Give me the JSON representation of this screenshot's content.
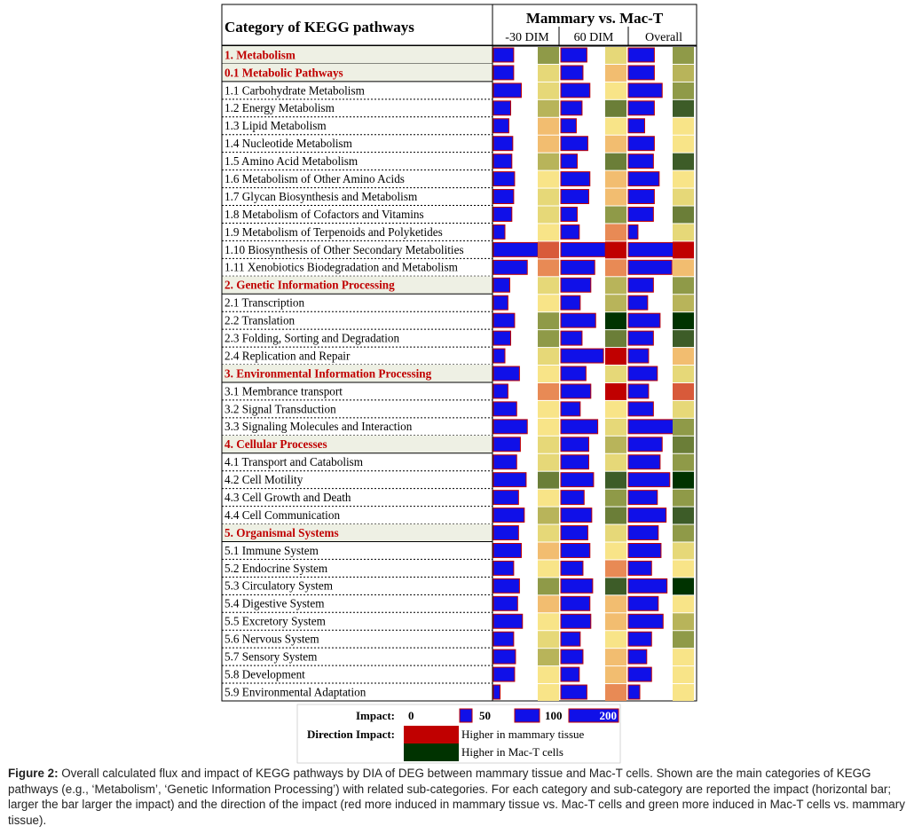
{
  "table": {
    "header_left": "Category of KEGG pathways",
    "header_group": "Mammary vs. Mac-T",
    "columns": [
      "-30 DIM",
      "60 DIM",
      "Overall"
    ]
  },
  "colors": {
    "impact_bar": "#1010e8",
    "impact_bar_border": "#c00000",
    "category_text": "#c00000",
    "category_row_bg": "#eef0e4",
    "higher_mammary": "#c00000",
    "higher_mact": "#003300",
    "direction_scale": [
      "#c00000",
      "#d85a3a",
      "#e88a55",
      "#f2bd70",
      "#f8e488",
      "#e6d878",
      "#b8b45a",
      "#8f9a48",
      "#6b7e38",
      "#3d5c28",
      "#003300"
    ]
  },
  "legend": {
    "impact_label": "Impact:",
    "impact_ticks": [
      {
        "label": "0",
        "value": 0
      },
      {
        "label": "50",
        "value": 50
      },
      {
        "label": "100",
        "value": 100
      },
      {
        "label": "200",
        "value": 200
      }
    ],
    "direction_label": "Direction Impact:",
    "direction_items": [
      "Higher in mammary tissue",
      "Higher in Mac-T cells"
    ]
  },
  "chart_data": {
    "type": "table",
    "title": "",
    "impact_range": [
      0,
      200
    ],
    "direction_scale_note": "direction level 0 = strongly higher in mammary tissue (red) ... 10 = strongly higher in Mac-T cells (green)",
    "series_names": [
      "-30 DIM",
      "60 DIM",
      "Overall"
    ],
    "rows": [
      {
        "label": "1. Metabolism",
        "category": true,
        "impact": [
          88,
          113,
          113
        ],
        "direction": [
          7,
          5,
          7
        ]
      },
      {
        "label": "0.1 Metabolic Pathways",
        "category": true,
        "impact": [
          88,
          96,
          113
        ],
        "direction": [
          5,
          3,
          6
        ]
      },
      {
        "label": "1.1 Carbohydrate Metabolism",
        "category": false,
        "impact": [
          121,
          126,
          147
        ],
        "direction": [
          5,
          4,
          7
        ]
      },
      {
        "label": "1.2 Energy Metabolism",
        "category": false,
        "impact": [
          75,
          92,
          113
        ],
        "direction": [
          6,
          8,
          9
        ]
      },
      {
        "label": "1.3 Lipid Metabolism",
        "category": false,
        "impact": [
          67,
          67,
          71
        ],
        "direction": [
          3,
          4,
          4
        ]
      },
      {
        "label": "1.4 Nucleotide Metabolism",
        "category": false,
        "impact": [
          84,
          117,
          113
        ],
        "direction": [
          3,
          3,
          4
        ]
      },
      {
        "label": "1.5 Amino Acid  Metabolism",
        "category": false,
        "impact": [
          80,
          71,
          109
        ],
        "direction": [
          6,
          8,
          9
        ]
      },
      {
        "label": "1.6 Metabolism of Other Amino Acids",
        "category": false,
        "impact": [
          92,
          126,
          134
        ],
        "direction": [
          4,
          3,
          4
        ]
      },
      {
        "label": "1.7 Glycan Biosynthesis and Metabolism",
        "category": false,
        "impact": [
          88,
          121,
          113
        ],
        "direction": [
          5,
          3,
          5
        ]
      },
      {
        "label": "1.8 Metabolism of Cofactors and Vitamins",
        "category": false,
        "impact": [
          80,
          71,
          109
        ],
        "direction": [
          5,
          7,
          8
        ]
      },
      {
        "label": "1.9 Metabolism of Terpenoids and Polyketides",
        "category": false,
        "impact": [
          50,
          80,
          42
        ],
        "direction": [
          4,
          2,
          5
        ]
      },
      {
        "label": "1.10 Biosynthesis of Other Secondary Metabolities",
        "category": false,
        "impact": [
          193,
          193,
          197
        ],
        "direction": [
          1,
          0,
          0
        ]
      },
      {
        "label": "1.11 Xenobiotics Biodegradation and Metabolism",
        "category": false,
        "impact": [
          147,
          147,
          189
        ],
        "direction": [
          2,
          2,
          3
        ]
      },
      {
        "label": "2. Genetic Information Processing",
        "category": true,
        "impact": [
          71,
          130,
          109
        ],
        "direction": [
          5,
          6,
          7
        ]
      },
      {
        "label": "2.1 Transcription",
        "category": false,
        "impact": [
          63,
          84,
          84
        ],
        "direction": [
          4,
          6,
          6
        ]
      },
      {
        "label": "2.2 Translation",
        "category": false,
        "impact": [
          92,
          151,
          138
        ],
        "direction": [
          7,
          10,
          10
        ]
      },
      {
        "label": "2.3 Folding, Sorting and Degradation",
        "category": false,
        "impact": [
          75,
          92,
          109
        ],
        "direction": [
          7,
          8,
          9
        ]
      },
      {
        "label": "2.4 Replication and Repair",
        "category": false,
        "impact": [
          50,
          185,
          88
        ],
        "direction": [
          5,
          0,
          3
        ]
      },
      {
        "label": "3. Environmental Information Processing",
        "category": true,
        "impact": [
          113,
          109,
          126
        ],
        "direction": [
          4,
          5,
          5
        ]
      },
      {
        "label": "3.1 Membrance transport",
        "category": false,
        "impact": [
          63,
          130,
          88
        ],
        "direction": [
          2,
          0,
          1
        ]
      },
      {
        "label": "3.2 Signal Transduction",
        "category": false,
        "impact": [
          101,
          84,
          109
        ],
        "direction": [
          4,
          4,
          5
        ]
      },
      {
        "label": "3.3 Signaling Molecules and Interaction",
        "category": false,
        "impact": [
          147,
          160,
          197
        ],
        "direction": [
          4,
          5,
          7
        ]
      },
      {
        "label": "4. Cellular Processes",
        "category": true,
        "impact": [
          117,
          121,
          147
        ],
        "direction": [
          5,
          6,
          8
        ]
      },
      {
        "label": "4.1 Transport and Catabolism",
        "category": false,
        "impact": [
          101,
          121,
          138
        ],
        "direction": [
          5,
          5,
          7
        ]
      },
      {
        "label": "4.2 Cell Motility",
        "category": false,
        "impact": [
          142,
          142,
          180
        ],
        "direction": [
          8,
          9,
          10
        ]
      },
      {
        "label": "4.3 Cell Growth and Death",
        "category": false,
        "impact": [
          109,
          101,
          126
        ],
        "direction": [
          4,
          7,
          7
        ]
      },
      {
        "label": "4.4 Cell Communication",
        "category": false,
        "impact": [
          134,
          134,
          164
        ],
        "direction": [
          6,
          8,
          9
        ]
      },
      {
        "label": "5. Organismal Systems",
        "category": true,
        "impact": [
          109,
          117,
          130
        ],
        "direction": [
          5,
          5,
          7
        ]
      },
      {
        "label": "5.1 Immune System",
        "category": false,
        "impact": [
          121,
          126,
          142
        ],
        "direction": [
          3,
          4,
          5
        ]
      },
      {
        "label": "5.2 Endocrine System",
        "category": false,
        "impact": [
          88,
          96,
          101
        ],
        "direction": [
          4,
          2,
          4
        ]
      },
      {
        "label": "5.3 Circulatory System",
        "category": false,
        "impact": [
          113,
          138,
          168
        ],
        "direction": [
          7,
          9,
          10
        ]
      },
      {
        "label": "5.4 Digestive System",
        "category": false,
        "impact": [
          105,
          126,
          130
        ],
        "direction": [
          3,
          3,
          4
        ]
      },
      {
        "label": "5.5 Excretory System",
        "category": false,
        "impact": [
          126,
          130,
          151
        ],
        "direction": [
          4,
          3,
          6
        ]
      },
      {
        "label": "5.6 Nervous System",
        "category": false,
        "impact": [
          88,
          84,
          101
        ],
        "direction": [
          5,
          4,
          7
        ]
      },
      {
        "label": "5.7 Sensory System",
        "category": false,
        "impact": [
          96,
          96,
          80
        ],
        "direction": [
          6,
          3,
          4
        ]
      },
      {
        "label": "5.8 Development",
        "category": false,
        "impact": [
          92,
          80,
          101
        ],
        "direction": [
          4,
          3,
          4
        ]
      },
      {
        "label": "5.9 Environmental Adaptation",
        "category": false,
        "impact": [
          29,
          113,
          50
        ],
        "direction": [
          4,
          2,
          4
        ]
      }
    ]
  },
  "caption": {
    "label": "Figure 2:",
    "text": " Overall calculated flux and impact of KEGG pathways by DIA of DEG between mammary tissue and Mac-T cells. Shown are the main categories of KEGG pathways (e.g., ‘Metabolism’, ‘Genetic Information Processing’) with related sub-categories. For each category and sub-category are reported the impact (horizontal bar; larger the bar larger the impact) and the direction of the impact (red more induced in mammary tissue vs. Mac-T cells and green more induced in Mac-T cells vs. mammary tissue)."
  }
}
